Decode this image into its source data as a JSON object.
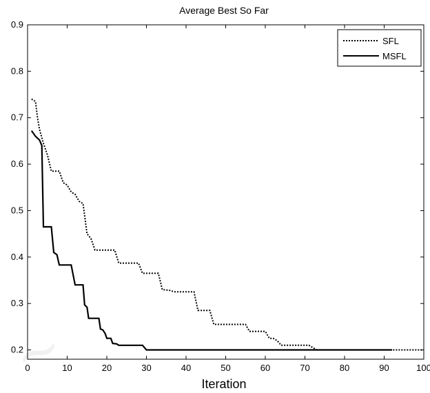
{
  "chart_data": {
    "type": "line",
    "title": "Average Best So Far",
    "xlabel": "Iteration",
    "ylabel": "",
    "xlim": [
      0,
      100
    ],
    "ylim": [
      0.18,
      0.9
    ],
    "xticks": [
      "0",
      "10",
      "20",
      "30",
      "40",
      "50",
      "60",
      "70",
      "80",
      "90",
      "100"
    ],
    "yticks": [
      "0.2",
      "0.3",
      "0.4",
      "0.5",
      "0.6",
      "0.7",
      "0.8",
      "0.9"
    ],
    "grid": false,
    "legend_position": "top-right",
    "series": [
      {
        "name": "SFL",
        "style": "dotted",
        "color": "#000000",
        "points": [
          [
            1,
            0.74
          ],
          [
            2,
            0.735
          ],
          [
            2.5,
            0.7
          ],
          [
            3,
            0.675
          ],
          [
            4,
            0.645
          ],
          [
            5,
            0.62
          ],
          [
            6,
            0.585
          ],
          [
            8,
            0.585
          ],
          [
            9,
            0.56
          ],
          [
            10,
            0.555
          ],
          [
            11,
            0.54
          ],
          [
            12,
            0.535
          ],
          [
            13,
            0.52
          ],
          [
            14,
            0.515
          ],
          [
            15,
            0.45
          ],
          [
            16,
            0.44
          ],
          [
            17,
            0.415
          ],
          [
            22,
            0.415
          ],
          [
            23,
            0.387
          ],
          [
            28,
            0.387
          ],
          [
            29,
            0.365
          ],
          [
            33,
            0.365
          ],
          [
            34,
            0.33
          ],
          [
            36,
            0.328
          ],
          [
            37,
            0.325
          ],
          [
            42,
            0.325
          ],
          [
            43,
            0.285
          ],
          [
            46,
            0.285
          ],
          [
            47,
            0.255
          ],
          [
            55,
            0.255
          ],
          [
            56,
            0.24
          ],
          [
            60,
            0.24
          ],
          [
            61,
            0.225
          ],
          [
            62,
            0.225
          ],
          [
            63,
            0.22
          ],
          [
            64,
            0.21
          ],
          [
            71,
            0.21
          ],
          [
            72,
            0.205
          ],
          [
            73,
            0.2
          ],
          [
            100,
            0.2
          ]
        ]
      },
      {
        "name": "MSFL",
        "style": "solid",
        "color": "#000000",
        "points": [
          [
            1,
            0.672
          ],
          [
            2,
            0.66
          ],
          [
            3,
            0.652
          ],
          [
            3.6,
            0.64
          ],
          [
            4,
            0.465
          ],
          [
            6,
            0.465
          ],
          [
            6.6,
            0.41
          ],
          [
            7.4,
            0.405
          ],
          [
            8,
            0.383
          ],
          [
            11,
            0.383
          ],
          [
            12,
            0.34
          ],
          [
            14,
            0.34
          ],
          [
            14.4,
            0.297
          ],
          [
            15,
            0.292
          ],
          [
            15.4,
            0.268
          ],
          [
            18,
            0.268
          ],
          [
            18.4,
            0.245
          ],
          [
            19,
            0.243
          ],
          [
            19.6,
            0.235
          ],
          [
            20,
            0.225
          ],
          [
            21,
            0.225
          ],
          [
            21.5,
            0.214
          ],
          [
            22.5,
            0.213
          ],
          [
            23,
            0.21
          ],
          [
            29,
            0.21
          ],
          [
            30,
            0.2
          ],
          [
            92,
            0.2
          ]
        ]
      }
    ]
  }
}
